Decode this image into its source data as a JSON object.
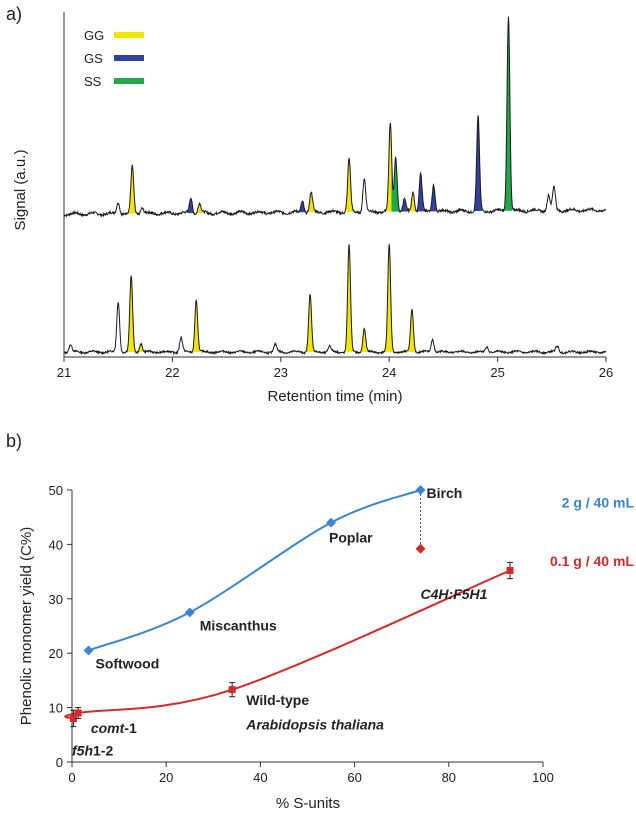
{
  "panel_a": {
    "label": "a)",
    "chart_data": {
      "type": "line",
      "xlabel": "Retention  time (min)",
      "ylabel": "Signal (a.u.)",
      "xlim": [
        21,
        26
      ],
      "xticks": [
        21,
        22,
        23,
        24,
        25,
        26
      ],
      "grid": false,
      "legend_position": "top-left",
      "legend": [
        {
          "name": "GG",
          "color": "#f2e600"
        },
        {
          "name": "GS",
          "color": "#3340a0"
        },
        {
          "name": "SS",
          "color": "#22a84a"
        }
      ],
      "traces": [
        {
          "id": "upper",
          "baseline_start": 0.08,
          "baseline_end": 0.1,
          "peaks": [
            {
              "x": 21.5,
              "h": 0.06,
              "type": null
            },
            {
              "x": 21.63,
              "h": 0.24,
              "type": "GG"
            },
            {
              "x": 21.72,
              "h": 0.03,
              "type": null
            },
            {
              "x": 22.17,
              "h": 0.08,
              "type": "GS"
            },
            {
              "x": 22.25,
              "h": 0.05,
              "type": "GG"
            },
            {
              "x": 23.2,
              "h": 0.06,
              "type": "GS"
            },
            {
              "x": 23.28,
              "h": 0.1,
              "type": "GG"
            },
            {
              "x": 23.63,
              "h": 0.27,
              "type": "GG"
            },
            {
              "x": 23.77,
              "h": 0.17,
              "type": null
            },
            {
              "x": 24.01,
              "h": 0.45,
              "type": "GG"
            },
            {
              "x": 24.06,
              "h": 0.28,
              "type": "SS"
            },
            {
              "x": 24.14,
              "h": 0.06,
              "type": "GS"
            },
            {
              "x": 24.22,
              "h": 0.1,
              "type": "GG"
            },
            {
              "x": 24.29,
              "h": 0.19,
              "type": "GS"
            },
            {
              "x": 24.41,
              "h": 0.14,
              "type": "GS"
            },
            {
              "x": 24.82,
              "h": 0.48,
              "type": "GS"
            },
            {
              "x": 25.1,
              "h": 1.0,
              "type": "SS"
            },
            {
              "x": 25.47,
              "h": 0.08,
              "type": null
            },
            {
              "x": 25.52,
              "h": 0.12,
              "type": null
            }
          ]
        },
        {
          "id": "lower",
          "baseline_start": 0.03,
          "baseline_end": 0.03,
          "peaks": [
            {
              "x": 21.06,
              "h": 0.05,
              "type": null
            },
            {
              "x": 21.5,
              "h": 0.35,
              "type": null
            },
            {
              "x": 21.62,
              "h": 0.52,
              "type": "GG"
            },
            {
              "x": 21.71,
              "h": 0.06,
              "type": "GG"
            },
            {
              "x": 22.08,
              "h": 0.1,
              "type": null
            },
            {
              "x": 22.22,
              "h": 0.36,
              "type": "GG"
            },
            {
              "x": 22.95,
              "h": 0.05,
              "type": null
            },
            {
              "x": 23.27,
              "h": 0.4,
              "type": "GG"
            },
            {
              "x": 23.45,
              "h": 0.04,
              "type": null
            },
            {
              "x": 23.63,
              "h": 0.74,
              "type": "GG"
            },
            {
              "x": 23.77,
              "h": 0.16,
              "type": "GG"
            },
            {
              "x": 24.0,
              "h": 0.74,
              "type": "GG"
            },
            {
              "x": 24.21,
              "h": 0.3,
              "type": "GG"
            },
            {
              "x": 24.4,
              "h": 0.09,
              "type": null
            },
            {
              "x": 24.9,
              "h": 0.04,
              "type": null
            },
            {
              "x": 25.55,
              "h": 0.04,
              "type": null
            }
          ]
        }
      ]
    }
  },
  "panel_b": {
    "label": "b)",
    "chart_data": {
      "type": "line",
      "xlabel": "% S-units",
      "ylabel": "Phenolic monomer yield (C%)",
      "xlim": [
        0,
        100
      ],
      "ylim": [
        0,
        50
      ],
      "xticks": [
        0,
        20,
        40,
        60,
        80,
        100
      ],
      "yticks": [
        0,
        10,
        20,
        30,
        40,
        50
      ],
      "grid": false,
      "series": [
        {
          "name": "2 g / 40 mL",
          "color": "#3a86d0",
          "marker": "diamond",
          "x": [
            3.5,
            25,
            55,
            74
          ],
          "y": [
            20.5,
            27.5,
            44,
            50
          ],
          "point_labels": [
            "Softwood",
            "Miscanthus",
            "Poplar",
            "Birch"
          ],
          "extra_point": {
            "x": 74,
            "y": 39.2,
            "color": "#d42a2a",
            "marker": "diamond",
            "connector": "dotted"
          }
        },
        {
          "name": "0.1 g / 40 mL",
          "color": "#d42a2a",
          "marker": "square",
          "x": [
            0.3,
            1.3,
            34,
            93
          ],
          "y": [
            8,
            9,
            13.3,
            35.2
          ],
          "errors": [
            1.5,
            1.0,
            1.3,
            1.5
          ],
          "point_labels": [
            {
              "parts": [
                {
                  "t": "comt",
                  "i": true
                },
                {
                  "t": "-1",
                  "i": false
                }
              ]
            },
            {
              "parts": [
                {
                  "t": "f5h",
                  "i": true
                },
                {
                  "t": "1-2",
                  "i": false
                }
              ]
            },
            {
              "parts": [
                {
                  "t": "Wild-type",
                  "i": false
                }
              ]
            },
            {
              "parts": [
                {
                  "t": "C4H:F5H1",
                  "i": true
                }
              ]
            }
          ],
          "extra_label": {
            "parts": [
              {
                "t": "Arabidopsis thaliana",
                "i": true
              }
            ]
          }
        }
      ]
    }
  }
}
